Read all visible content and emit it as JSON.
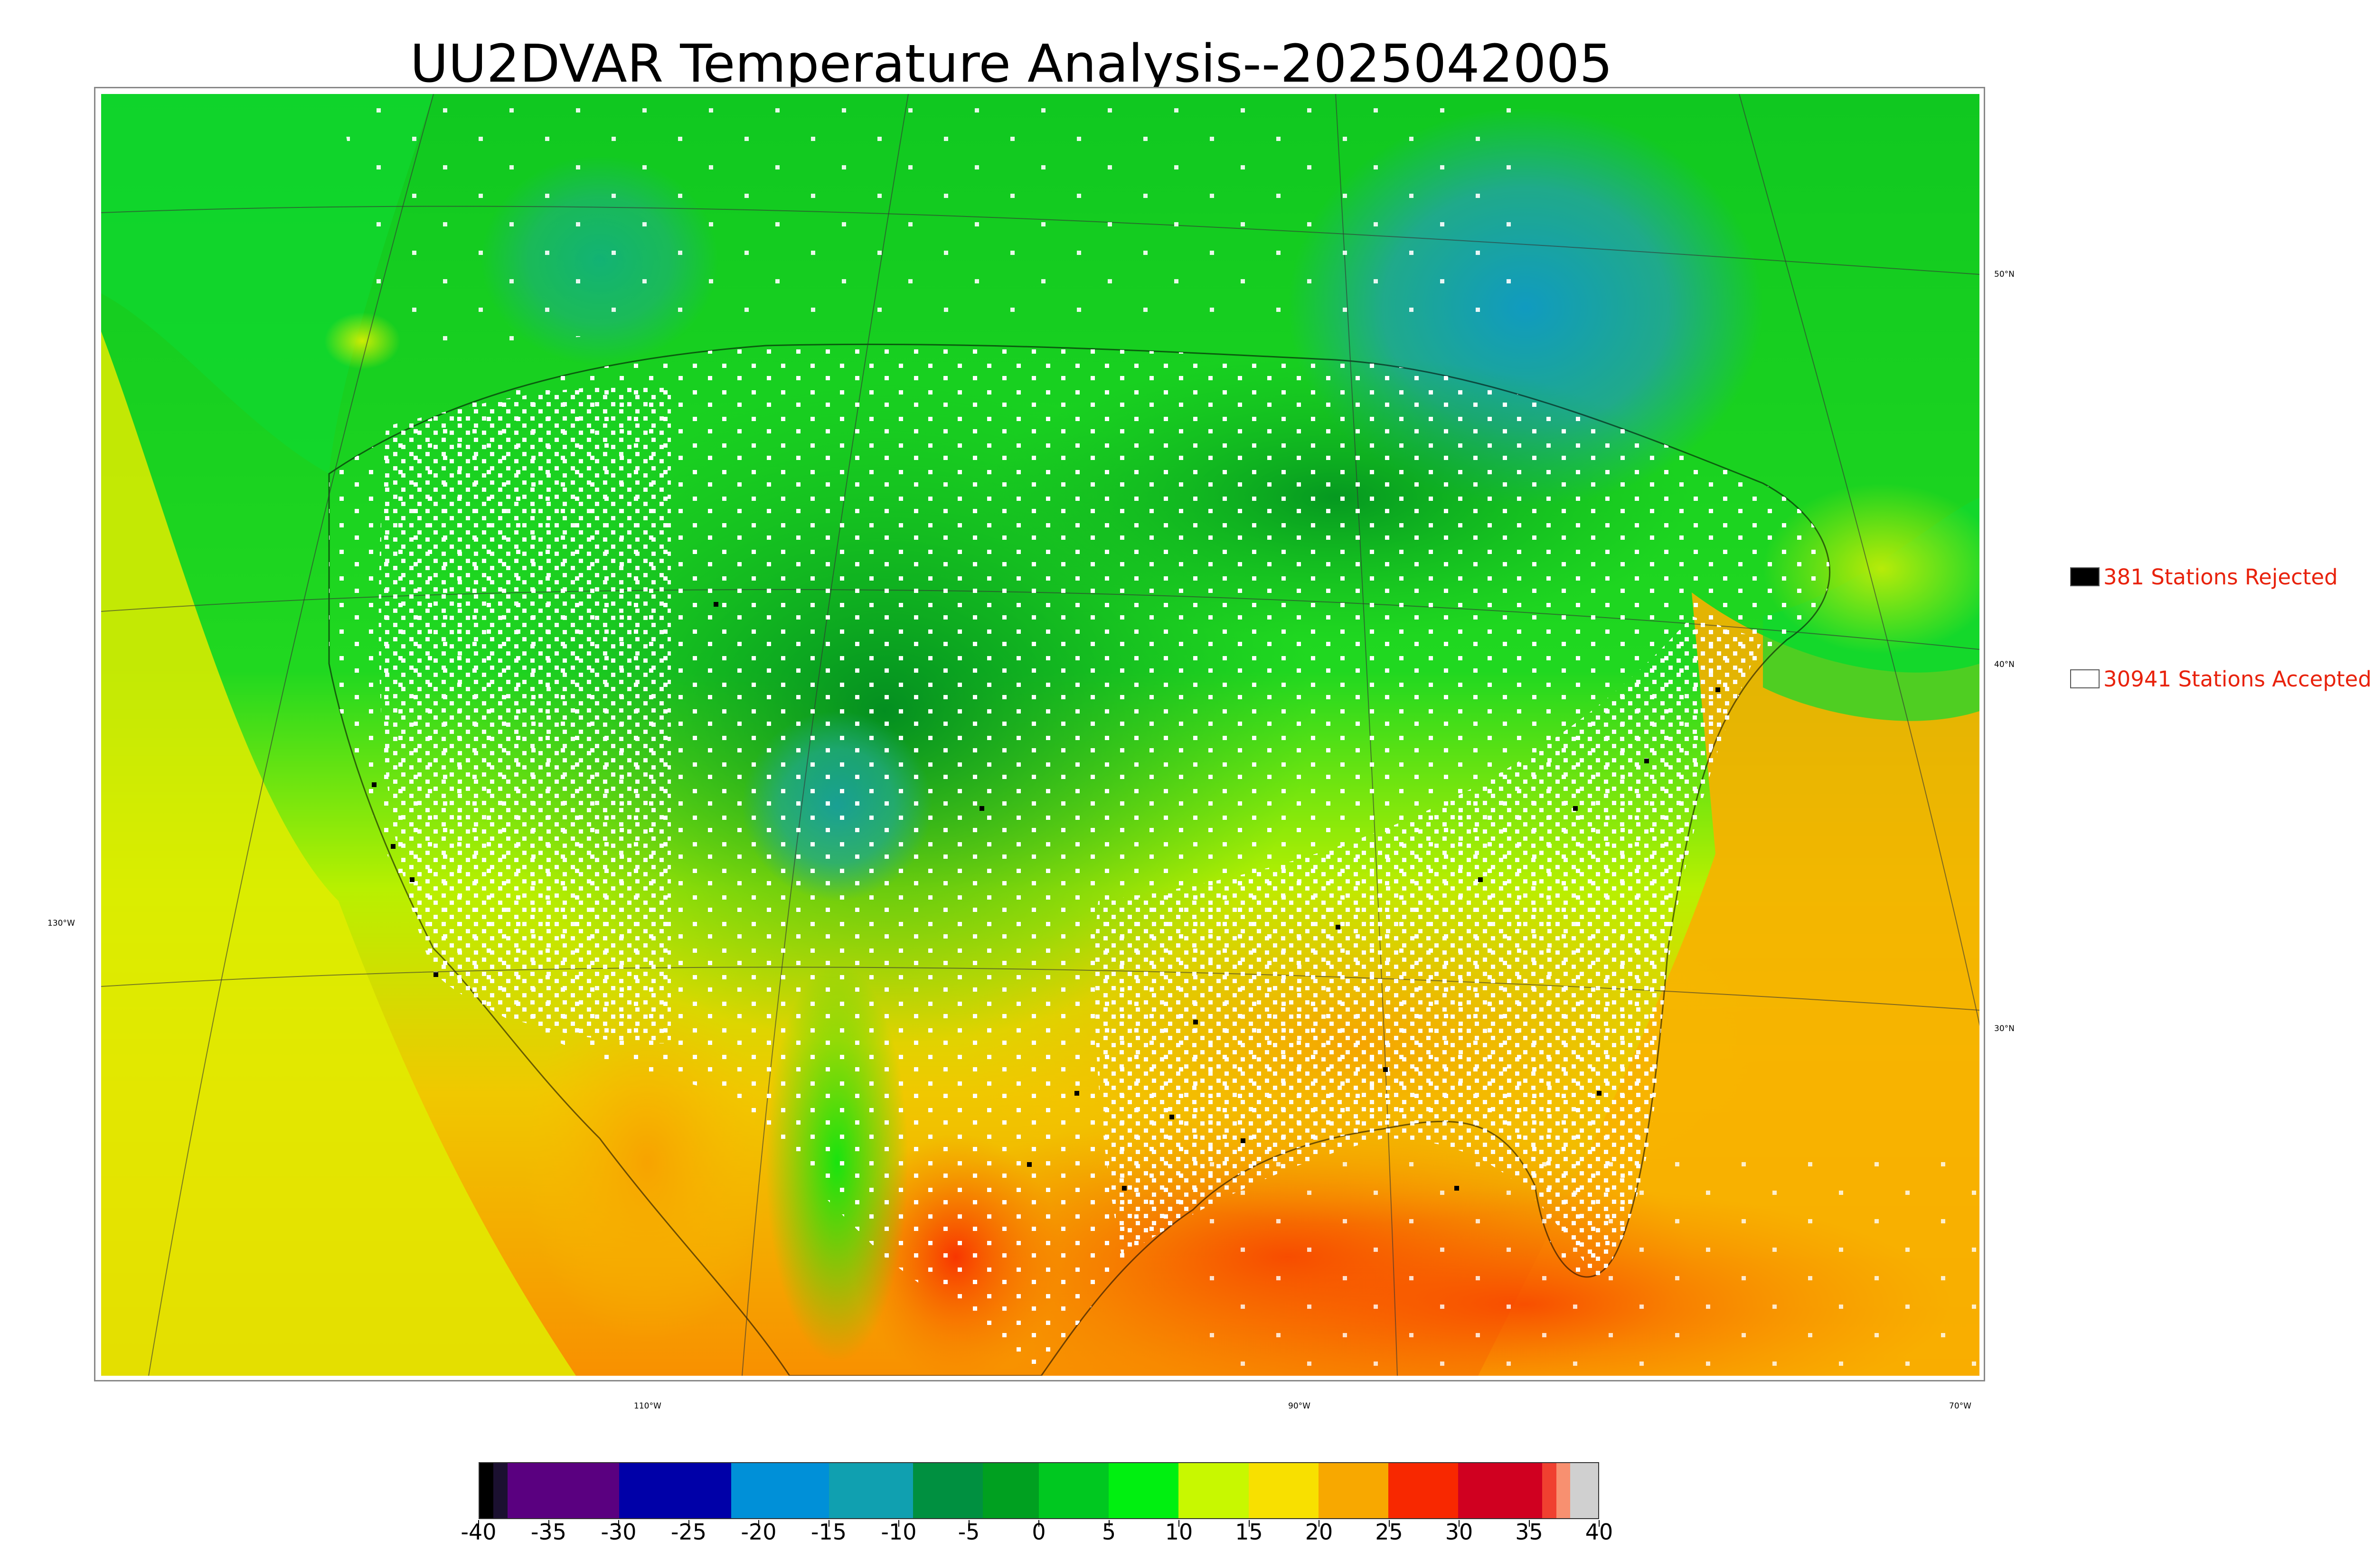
{
  "title": "UU2DVAR Temperature Analysis--2025042005",
  "legend": [
    {
      "label": "381 Stations Rejected",
      "color": "#000000"
    },
    {
      "label": "30941 Stations Accepted",
      "color": "#ffffff"
    }
  ],
  "lat_labels": [
    "50°N",
    "40°N",
    "30°N"
  ],
  "lon_labels": [
    "130°W",
    "110°W",
    "90°W",
    "70°W"
  ],
  "colorbar": {
    "ticks": [
      "-40",
      "-35",
      "-30",
      "-25",
      "-20",
      "-15",
      "-10",
      "-5",
      "0",
      "5",
      "10",
      "15",
      "20",
      "25",
      "30",
      "35",
      "40"
    ],
    "range": [
      -40,
      40
    ],
    "colors": [
      {
        "from": -40,
        "to": -39,
        "color": "#000000"
      },
      {
        "from": -39,
        "to": -38,
        "color": "#1b1030"
      },
      {
        "from": -38,
        "to": -30,
        "color": "#5a0080"
      },
      {
        "from": -30,
        "to": -22,
        "color": "#0000a8"
      },
      {
        "from": -22,
        "to": -15,
        "color": "#0090d8"
      },
      {
        "from": -15,
        "to": -9,
        "color": "#10a0b0"
      },
      {
        "from": -9,
        "to": -4,
        "color": "#009040"
      },
      {
        "from": -4,
        "to": 0,
        "color": "#00a020"
      },
      {
        "from": 0,
        "to": 5,
        "color": "#00c820"
      },
      {
        "from": 5,
        "to": 10,
        "color": "#00f010"
      },
      {
        "from": 10,
        "to": 15,
        "color": "#c8f800"
      },
      {
        "from": 15,
        "to": 20,
        "color": "#f8e000"
      },
      {
        "from": 20,
        "to": 25,
        "color": "#f8a800"
      },
      {
        "from": 25,
        "to": 30,
        "color": "#f82800"
      },
      {
        "from": 30,
        "to": 36,
        "color": "#d00020"
      },
      {
        "from": 36,
        "to": 37,
        "color": "#f04030"
      },
      {
        "from": 37,
        "to": 38,
        "color": "#f89070"
      },
      {
        "from": 38,
        "to": 40,
        "color": "#d0d0d0"
      }
    ]
  }
}
